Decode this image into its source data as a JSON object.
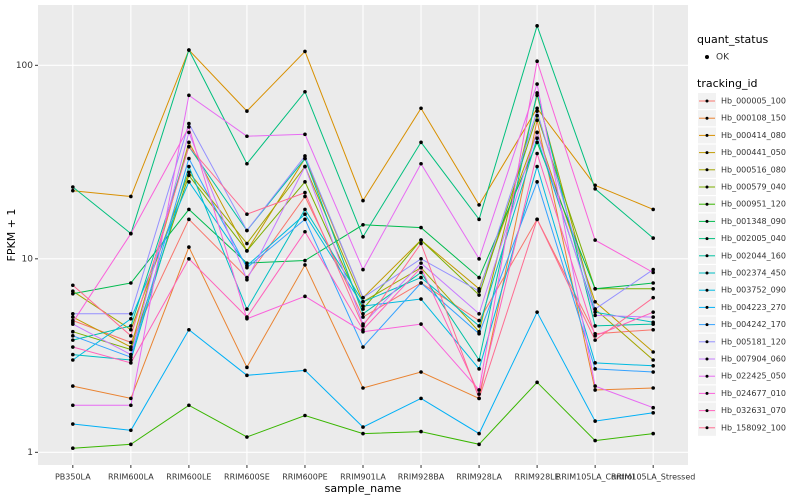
{
  "chart_data": {
    "type": "line",
    "log_y": true,
    "grid": true,
    "x_label": "sample_name",
    "y_label": "FPKM + 1",
    "shape_legend_title": "quant_status",
    "shape_legend_labels": [
      "OK"
    ],
    "color_legend_title": "tracking_id",
    "categories": [
      "PB350LA",
      "RRIM600LA",
      "RRIM600LE",
      "RRIM600SE",
      "RRIM600PE",
      "RRIM901LA",
      "RRIM928BA",
      "RRIM928LA",
      "RRIM928LE",
      "RRIM105LA_Control",
      "RRIM105LA_Stressed"
    ],
    "ylim": [
      0.86,
      205
    ],
    "yticks": [
      1,
      10,
      100
    ],
    "series": [
      {
        "name": "Hb_000005_100",
        "color": "#F8766D",
        "values": [
          4.8,
          3.7,
          16,
          8,
          21,
          5,
          7.5,
          4.8,
          16,
          4.1,
          4.3
        ]
      },
      {
        "name": "Hb_000108_150",
        "color": "#EA8331",
        "values": [
          2.2,
          1.9,
          11.5,
          2.75,
          9.3,
          2.15,
          2.6,
          1.9,
          52,
          2.1,
          2.15
        ]
      },
      {
        "name": "Hb_000414_080",
        "color": "#D89000",
        "values": [
          22.5,
          21,
          120,
          58,
          118,
          20,
          60,
          19,
          60,
          24,
          18
        ]
      },
      {
        "name": "Hb_000441_050",
        "color": "#C09B00",
        "values": [
          5,
          3.5,
          40,
          11,
          33,
          6.3,
          12.5,
          7,
          45,
          6,
          3.3
        ]
      },
      {
        "name": "Hb_000516_080",
        "color": "#A3A500",
        "values": [
          6.8,
          4.3,
          28,
          12,
          30,
          6,
          9,
          4.2,
          70,
          5.5,
          3.0
        ]
      },
      {
        "name": "Hb_000579_040",
        "color": "#7CAE00",
        "values": [
          4.2,
          3.4,
          27,
          11,
          25,
          5.5,
          12.5,
          6.5,
          55,
          7,
          7
        ]
      },
      {
        "name": "Hb_000951_120",
        "color": "#39B600",
        "values": [
          1.05,
          1.1,
          1.75,
          1.2,
          1.55,
          1.25,
          1.28,
          1.1,
          2.3,
          1.15,
          1.25
        ]
      },
      {
        "name": "Hb_001348_090",
        "color": "#00BB4E",
        "values": [
          6.6,
          7.5,
          18,
          9.5,
          9.8,
          15,
          14.5,
          8,
          40,
          7,
          7.5
        ]
      },
      {
        "name": "Hb_002005_040",
        "color": "#00BF7D",
        "values": [
          23.5,
          13.5,
          120,
          31,
          73,
          13,
          40,
          16,
          160,
          23,
          12.8
        ]
      },
      {
        "name": "Hb_002044_160",
        "color": "#00C1A3",
        "values": [
          3.8,
          4.5,
          38,
          14,
          33,
          5.2,
          8.5,
          3,
          72,
          4.5,
          4.6
        ]
      },
      {
        "name": "Hb_002374_450",
        "color": "#00BFC4",
        "values": [
          3.2,
          3.0,
          30,
          5.5,
          18,
          6,
          8,
          4.5,
          42,
          5.3,
          4.7
        ]
      },
      {
        "name": "Hb_003752_090",
        "color": "#00BAE0",
        "values": [
          3.0,
          4.9,
          25,
          9.2,
          17,
          5.7,
          6.2,
          2.7,
          30,
          2.9,
          2.8
        ]
      },
      {
        "name": "Hb_004223_270",
        "color": "#00B0F6",
        "values": [
          1.4,
          1.3,
          4.3,
          2.5,
          2.65,
          1.35,
          1.9,
          1.25,
          5.3,
          1.45,
          1.6
        ]
      },
      {
        "name": "Hb_004242_170",
        "color": "#35A2FF",
        "values": [
          4.0,
          3.1,
          33,
          9,
          16,
          3.5,
          7.5,
          4.1,
          25,
          2.7,
          2.6
        ]
      },
      {
        "name": "Hb_005181_120",
        "color": "#9590FF",
        "values": [
          5.2,
          5.2,
          50,
          14,
          34,
          6.3,
          10,
          6.8,
          58,
          5.5,
          8.8
        ]
      },
      {
        "name": "Hb_007904_060",
        "color": "#C77CFF",
        "values": [
          4.6,
          3.2,
          45,
          7.8,
          30,
          4.6,
          9.5,
          5.2,
          45,
          5.1,
          5
        ]
      },
      {
        "name": "Hb_022425_050",
        "color": "#E76BF3",
        "values": [
          1.75,
          1.75,
          70,
          43,
          44,
          8.8,
          31,
          10,
          80,
          2.2,
          1.7
        ]
      },
      {
        "name": "Hb_024677_010",
        "color": "#FA62DB",
        "values": [
          4.7,
          13.5,
          48,
          4.9,
          6.4,
          4.2,
          4.6,
          2.1,
          105,
          12.5,
          8.5
        ]
      },
      {
        "name": "Hb_032631_070",
        "color": "#FF62BC",
        "values": [
          3.5,
          2.9,
          10,
          5,
          13.8,
          4.3,
          9,
          2.0,
          35,
          4,
          5.3
        ]
      },
      {
        "name": "Hb_158092_100",
        "color": "#FF6C91",
        "values": [
          7.3,
          4.0,
          38,
          17,
          22,
          4.5,
          12,
          1.9,
          16,
          3.8,
          6.3
        ]
      }
    ]
  }
}
